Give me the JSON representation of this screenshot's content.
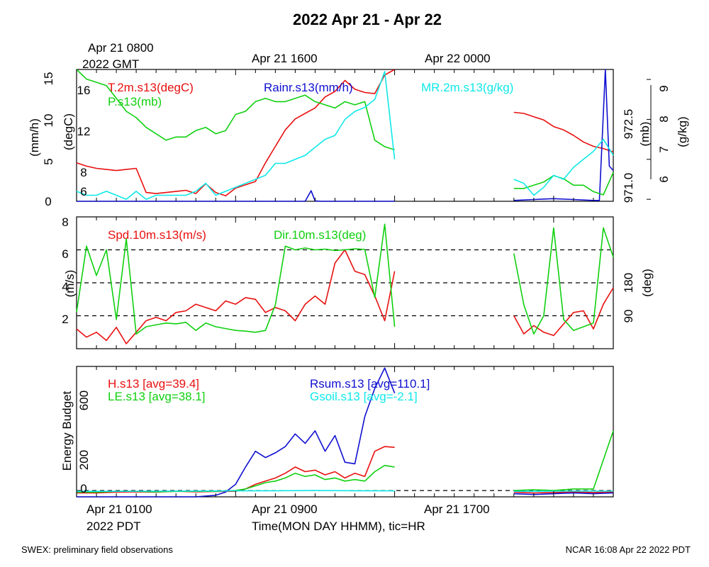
{
  "header": {
    "title": "2022 Apr 21 - Apr 22",
    "top_time_labels": [
      "Apr 21 0800",
      "Apr 21 1600",
      "Apr 22 0000"
    ],
    "top_zone_label": "2022 GMT"
  },
  "footer": {
    "left": "SWEX: preliminary field observations",
    "right": "NCAR 16:08 Apr 22 2022 PDT"
  },
  "chart_data": [
    {
      "type": "line",
      "panel": "met",
      "x_range_hours": [
        0,
        27
      ],
      "axes": {
        "rain": {
          "label": "(mm/h)",
          "range": [
            0,
            15
          ],
          "ticks": [
            "0",
            "5",
            "10",
            "15"
          ]
        },
        "temp": {
          "label": "(degC)",
          "range": [
            5,
            17
          ],
          "ticks": [
            "6",
            "8",
            "12",
            "16"
          ]
        },
        "pres": {
          "label": "(mb)",
          "range": [
            970.9,
            975.0
          ],
          "ticks": [
            "971.0",
            "972.5"
          ]
        },
        "mr": {
          "label": "(g/kg)",
          "range": [
            5.95,
            9.25
          ],
          "ticks": [
            "6",
            "7",
            "8",
            "9"
          ]
        }
      },
      "series": [
        {
          "name": "T.2m.s13(degC)",
          "axis": "temp",
          "color": "#e81010",
          "x": [
            0,
            0.5,
            1,
            1.5,
            2,
            2.5,
            3,
            3.5,
            4,
            4.5,
            5,
            5.5,
            6,
            6.5,
            7,
            7.5,
            8,
            8.5,
            9,
            9.5,
            10,
            10.5,
            11,
            11.5,
            12,
            12.5,
            13,
            13.5,
            14,
            14.5,
            15,
            15.5,
            16,
            null,
            22,
            22.5,
            23,
            23.5,
            24,
            24.5,
            25,
            25.5,
            26,
            26.5,
            27
          ],
          "y": [
            8.5,
            8.2,
            8.0,
            7.9,
            7.8,
            7.9,
            8.0,
            5.8,
            5.7,
            5.8,
            5.9,
            6.0,
            5.7,
            6.6,
            5.8,
            5.5,
            6.2,
            6.5,
            6.8,
            8.5,
            10.0,
            11.5,
            12.5,
            13.0,
            13.5,
            14.5,
            15.0,
            16.0,
            15.2,
            14.9,
            14.8,
            16.5,
            17.0,
            null,
            13.1,
            13.0,
            12.7,
            12.4,
            11.8,
            11.5,
            11.0,
            10.4,
            10.0,
            9.8,
            9.5
          ]
        },
        {
          "name": "Rainr.s13(mm/h)",
          "axis": "rain",
          "color": "#1010d0",
          "x": [
            0,
            1,
            2,
            3,
            4,
            5,
            6,
            7,
            8,
            9,
            10,
            11,
            11.5,
            11.8,
            12,
            12.3,
            13,
            14,
            15,
            16,
            null,
            22,
            23,
            24,
            25,
            26,
            26.3,
            26.6,
            26.8,
            27
          ],
          "y": [
            0,
            0,
            0,
            0,
            0,
            0,
            0,
            0,
            0,
            0,
            0,
            0,
            0,
            1.2,
            0.05,
            0,
            0,
            0,
            0,
            0,
            null,
            0.1,
            0.2,
            0.3,
            0.2,
            0.1,
            0.1,
            15,
            4,
            3.5
          ]
        },
        {
          "name": "P.s13(mb)",
          "axis": "pres",
          "color": "#10d010",
          "x": [
            0,
            0.5,
            1,
            1.5,
            2,
            2.5,
            3,
            3.5,
            4,
            4.5,
            5,
            5.5,
            6,
            6.5,
            7,
            7.5,
            8,
            8.5,
            9,
            9.5,
            10,
            10.5,
            11,
            11.5,
            12,
            12.5,
            13,
            13.5,
            14,
            14.5,
            15,
            15.5,
            16,
            null,
            22,
            22.5,
            23,
            23.5,
            24,
            24.5,
            25,
            25.5,
            26,
            26.5,
            27
          ],
          "y": [
            975.0,
            974.7,
            974.6,
            974.5,
            974.1,
            973.7,
            973.5,
            973.2,
            973.0,
            972.8,
            972.9,
            972.9,
            973.1,
            973.2,
            973.0,
            973.1,
            973.6,
            973.7,
            974.0,
            974.1,
            974.0,
            974.0,
            974.1,
            974.2,
            974.0,
            973.9,
            973.8,
            974.0,
            973.9,
            974.0,
            972.8,
            972.6,
            972.5,
            null,
            971.3,
            971.3,
            971.4,
            971.5,
            971.7,
            971.6,
            971.4,
            971.4,
            971.2,
            971.1,
            971.8
          ]
        },
        {
          "name": "MR.2m.s13(g/kg)",
          "axis": "mr",
          "color": "#10e8e8",
          "x": [
            0,
            0.5,
            1,
            1.5,
            2,
            2.5,
            3,
            3.5,
            4,
            4.5,
            5,
            5.5,
            6,
            6.5,
            7,
            7.5,
            8,
            8.5,
            9,
            9.5,
            10,
            10.5,
            11,
            11.5,
            12,
            12.5,
            13,
            13.5,
            14,
            14.5,
            15,
            15.5,
            16,
            null,
            22,
            22.5,
            23,
            23.5,
            24,
            24.5,
            25,
            25.5,
            26,
            26.5,
            27
          ],
          "y": [
            6.2,
            6.1,
            6.1,
            6.2,
            6.1,
            6.0,
            6.2,
            6.0,
            6.1,
            6.1,
            6.1,
            6.1,
            6.2,
            6.4,
            6.1,
            6.2,
            6.3,
            6.4,
            6.5,
            6.6,
            6.9,
            6.9,
            7.0,
            7.1,
            7.3,
            7.5,
            7.6,
            8.0,
            8.2,
            8.3,
            8.5,
            9.2,
            7.0,
            null,
            6.5,
            6.4,
            6.1,
            6.3,
            6.6,
            6.5,
            6.8,
            7.0,
            7.2,
            7.5,
            7.1
          ]
        }
      ],
      "legend": {
        "T": "T.2m.s13(degC)",
        "P": "P.s13(mb)",
        "Rain": "Rainr.s13(mm/h)",
        "MR": "MR.2m.s13(g/kg)"
      }
    },
    {
      "type": "line",
      "panel": "wind",
      "x_range_hours": [
        0,
        27
      ],
      "axes": {
        "spd": {
          "label": "(m/s)",
          "range": [
            0.3,
            8.3
          ],
          "ticks": [
            "2",
            "4",
            "6",
            "8"
          ]
        },
        "dir": {
          "label": "(deg)",
          "range": [
            0,
            360
          ],
          "ticks": [
            "90",
            "180"
          ]
        }
      },
      "reference_lines_deg": [
        90,
        180,
        270
      ],
      "series": [
        {
          "name": "Spd.10m.s13(m/s)",
          "axis": "spd",
          "color": "#e81010",
          "x": [
            0,
            0.5,
            1,
            1.5,
            2,
            2.5,
            3,
            3.5,
            4,
            4.5,
            5,
            5.5,
            6,
            6.5,
            7,
            7.5,
            8,
            8.5,
            9,
            9.5,
            10,
            10.5,
            11,
            11.5,
            12,
            12.5,
            13,
            13.5,
            14,
            14.5,
            15,
            15.5,
            16,
            null,
            22,
            22.5,
            23,
            23.5,
            24,
            24.5,
            25,
            25.5,
            26,
            26.5,
            27
          ],
          "y": [
            1.5,
            1.0,
            1.3,
            0.8,
            1.6,
            0.6,
            1.3,
            2.0,
            2.2,
            2.0,
            2.5,
            2.6,
            3.0,
            2.8,
            2.6,
            3.2,
            3.0,
            3.4,
            3.3,
            2.5,
            2.8,
            2.6,
            2.0,
            3.0,
            3.5,
            3.0,
            5.5,
            6.3,
            5.0,
            4.8,
            3.5,
            2.0,
            5.0,
            null,
            2.3,
            1.2,
            1.7,
            1.3,
            1.1,
            1.8,
            2.5,
            2.6,
            1.5,
            3.0,
            4.0
          ]
        },
        {
          "name": "Dir.10m.s13(deg)",
          "axis": "dir",
          "color": "#10d010",
          "x": [
            0,
            0.5,
            1,
            1.5,
            2,
            2.5,
            3,
            3.5,
            4,
            4.5,
            5,
            5.5,
            6,
            6.5,
            7,
            7.5,
            8,
            8.5,
            9,
            9.5,
            10,
            10.5,
            11,
            11.5,
            12,
            12.5,
            13,
            13.5,
            14,
            14.5,
            15,
            15.5,
            16,
            null,
            22,
            22.5,
            23,
            23.5,
            24,
            24.5,
            25,
            25.5,
            26,
            26.5,
            27
          ],
          "y": [
            100,
            280,
            200,
            270,
            80,
            300,
            40,
            60,
            65,
            70,
            68,
            72,
            50,
            70,
            60,
            55,
            50,
            48,
            45,
            50,
            120,
            280,
            270,
            275,
            270,
            272,
            268,
            270,
            273,
            271,
            140,
            340,
            60,
            null,
            260,
            120,
            40,
            90,
            330,
            80,
            50,
            60,
            70,
            330,
            250
          ]
        }
      ],
      "legend": {
        "Spd": "Spd.10m.s13(m/s)",
        "Dir": "Dir.10m.s13(deg)"
      }
    },
    {
      "type": "line",
      "panel": "energy",
      "x_range_hours": [
        0,
        27
      ],
      "axes": {
        "eb": {
          "label": "Energy Budget",
          "range": [
            -40,
            790
          ],
          "ticks": [
            "0",
            "200",
            "600"
          ]
        }
      },
      "reference_lines": [
        0
      ],
      "series": [
        {
          "name": "H.s13 [avg=39.4]",
          "color": "#e81010",
          "x": [
            0,
            1,
            2,
            3,
            4,
            5,
            6,
            7,
            8,
            8.5,
            9,
            9.5,
            10,
            10.5,
            11,
            11.5,
            12,
            12.5,
            13,
            13.5,
            14,
            14.5,
            15,
            15.5,
            16,
            null,
            22,
            23,
            24,
            25,
            26,
            27
          ],
          "y": [
            -15,
            -15,
            -10,
            -8,
            -10,
            -5,
            -8,
            -6,
            -5,
            10,
            40,
            60,
            80,
            110,
            150,
            120,
            130,
            100,
            120,
            80,
            110,
            90,
            250,
            280,
            275,
            null,
            -10,
            -15,
            -12,
            -10,
            -12,
            -10
          ]
        },
        {
          "name": "LE.s13 [avg=38.1]",
          "color": "#10d010",
          "x": [
            0,
            1,
            2,
            3,
            4,
            5,
            6,
            7,
            8,
            8.5,
            9,
            9.5,
            10,
            10.5,
            11,
            11.5,
            12,
            12.5,
            13,
            13.5,
            14,
            14.5,
            15,
            15.5,
            16,
            null,
            22,
            23,
            24,
            25,
            26,
            27
          ],
          "y": [
            -10,
            -10,
            -5,
            -5,
            -8,
            -5,
            -5,
            -5,
            0,
            10,
            30,
            50,
            60,
            80,
            110,
            90,
            100,
            70,
            80,
            60,
            70,
            60,
            120,
            160,
            150,
            null,
            0,
            5,
            0,
            10,
            10,
            380
          ]
        },
        {
          "name": "Rsum.s13 [avg=110.1]",
          "color": "#1010d0",
          "x": [
            0,
            1,
            2,
            3,
            4,
            5,
            6,
            7,
            7.5,
            8,
            8.5,
            9,
            9.5,
            10,
            10.5,
            11,
            11.5,
            12,
            12.5,
            13,
            13.5,
            14,
            14.5,
            15,
            15.5,
            16,
            null,
            22,
            23,
            24,
            25,
            26,
            27
          ],
          "y": [
            -40,
            -40,
            -40,
            -40,
            -40,
            -40,
            -40,
            -30,
            -10,
            40,
            150,
            250,
            210,
            240,
            280,
            360,
            300,
            380,
            250,
            350,
            180,
            170,
            470,
            650,
            780,
            620,
            null,
            -20,
            -25,
            -20,
            -15,
            -20,
            -15
          ]
        },
        {
          "name": "Gsoil.s13 [avg=-2.1]",
          "color": "#10e8e8",
          "x": [
            0,
            2,
            4,
            6,
            8,
            10,
            12,
            14,
            16,
            null,
            22,
            24,
            26,
            27
          ],
          "y": [
            -5,
            -5,
            -4,
            -3,
            -2,
            -1,
            0,
            -1,
            -2,
            null,
            -5,
            -4,
            -3,
            -4
          ]
        }
      ],
      "legend": {
        "H": "H.s13 [avg=39.4]",
        "LE": "LE.s13 [avg=38.1]",
        "Rsum": "Rsum.s13 [avg=110.1]",
        "Gsoil": "Gsoil.s13 [avg=-2.1]"
      },
      "xticks": [
        "Apr 21 0100",
        "Apr 21 0900",
        "Apr 21 1700"
      ],
      "x_zone_label": "2022 PDT",
      "xlabel": "Time(MON DAY HHMM), tic=HR"
    }
  ]
}
